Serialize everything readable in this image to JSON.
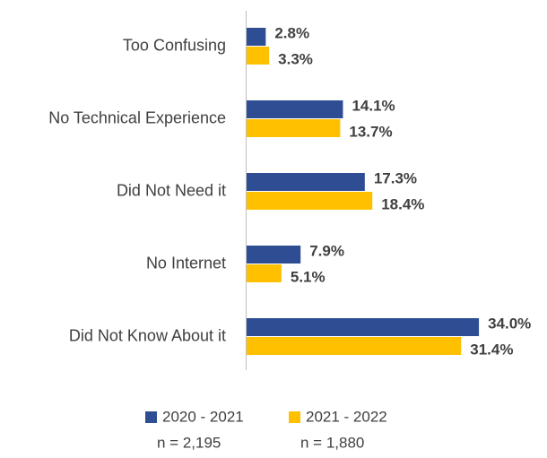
{
  "chart_data": {
    "type": "hbar",
    "categories": [
      "Too Confusing",
      "No Technical Experience",
      "Did Not Need it",
      "No Internet",
      "Did Not Know About it"
    ],
    "series": [
      {
        "name": "2020 - 2021",
        "note": "n = 2,195",
        "color": "#2e4d93",
        "values": [
          2.8,
          14.1,
          17.3,
          7.9,
          34.0
        ],
        "value_labels": [
          "2.8%",
          "14.1%",
          "17.3%",
          "7.9%",
          "34.0%"
        ]
      },
      {
        "name": "2021 - 2022",
        "note": "n = 1,880",
        "color": "#ffc000",
        "values": [
          3.3,
          13.7,
          18.4,
          5.1,
          31.4
        ],
        "value_labels": [
          "3.3%",
          "13.7%",
          "18.4%",
          "5.1%",
          "31.4%"
        ]
      }
    ],
    "legend": "bottom"
  }
}
